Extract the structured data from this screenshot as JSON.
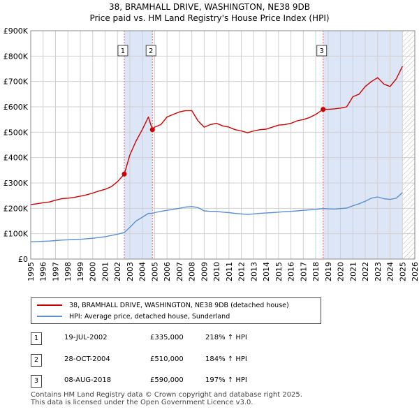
{
  "title": "38, BRAMHALL DRIVE, WASHINGTON, NE38 9DB",
  "subtitle": "Price paid vs. HM Land Registry's House Price Index (HPI)",
  "colors": {
    "property_line": "#cc0000",
    "hpi_line": "#5b8fd0",
    "shade": "#dde6f7",
    "vline": "#e06666"
  },
  "chart_data": {
    "type": "line",
    "title": "38, BRAMHALL DRIVE, WASHINGTON, NE38 9DB",
    "subtitle": "Price paid vs. HM Land Registry's House Price Index (HPI)",
    "xlim": [
      1995,
      2026
    ],
    "ylim": [
      0,
      900000
    ],
    "x_ticks": [
      "1995",
      "1996",
      "1997",
      "1998",
      "1999",
      "2000",
      "2001",
      "2002",
      "2003",
      "2004",
      "2005",
      "2006",
      "2007",
      "2008",
      "2009",
      "2010",
      "2011",
      "2012",
      "2013",
      "2014",
      "2015",
      "2016",
      "2017",
      "2018",
      "2019",
      "2020",
      "2021",
      "2022",
      "2023",
      "2024",
      "2025",
      "2026"
    ],
    "y_ticks": [
      {
        "value": 0,
        "label": "£0"
      },
      {
        "value": 100000,
        "label": "£100K"
      },
      {
        "value": 200000,
        "label": "£200K"
      },
      {
        "value": 300000,
        "label": "£300K"
      },
      {
        "value": 400000,
        "label": "£400K"
      },
      {
        "value": 500000,
        "label": "£500K"
      },
      {
        "value": 600000,
        "label": "£600K"
      },
      {
        "value": 700000,
        "label": "£700K"
      },
      {
        "value": 800000,
        "label": "£800K"
      },
      {
        "value": 900000,
        "label": "£900K"
      }
    ],
    "grid": true,
    "shaded_ranges": [
      [
        2002.55,
        2004.82
      ],
      [
        2018.6,
        2025.0
      ]
    ],
    "forecast_hatch_from": 2025.0,
    "series": [
      {
        "name": "38, BRAMHALL DRIVE, WASHINGTON, NE38 9DB (detached house)",
        "x": [
          1995,
          1995.5,
          1996,
          1996.5,
          1997,
          1997.5,
          1998,
          1998.5,
          1999,
          1999.5,
          2000,
          2000.5,
          2001,
          2001.5,
          2002,
          2002.55,
          2003,
          2003.5,
          2004,
          2004.5,
          2004.82,
          2005,
          2005.5,
          2006,
          2006.5,
          2007,
          2007.5,
          2008,
          2008.5,
          2009,
          2009.5,
          2010,
          2010.5,
          2011,
          2011.5,
          2012,
          2012.5,
          2013,
          2013.5,
          2014,
          2014.5,
          2015,
          2015.5,
          2016,
          2016.5,
          2017,
          2017.5,
          2018,
          2018.6,
          2019,
          2019.5,
          2020,
          2020.5,
          2021,
          2021.5,
          2022,
          2022.5,
          2023,
          2023.5,
          2024,
          2024.5,
          2025
        ],
        "values": [
          215000,
          218000,
          222000,
          225000,
          232000,
          238000,
          240000,
          243000,
          248000,
          253000,
          260000,
          268000,
          275000,
          285000,
          305000,
          335000,
          410000,
          465000,
          510000,
          560000,
          510000,
          520000,
          530000,
          560000,
          570000,
          580000,
          585000,
          585000,
          545000,
          520000,
          530000,
          535000,
          525000,
          520000,
          510000,
          505000,
          498000,
          505000,
          510000,
          512000,
          520000,
          528000,
          530000,
          535000,
          545000,
          550000,
          558000,
          570000,
          590000,
          590000,
          592000,
          595000,
          600000,
          640000,
          650000,
          680000,
          700000,
          715000,
          690000,
          680000,
          710000,
          760000
        ]
      },
      {
        "name": "HPI: Average price, detached house, Sunderland",
        "x": [
          1995,
          1995.5,
          1996,
          1996.5,
          1997,
          1997.5,
          1998,
          1998.5,
          1999,
          1999.5,
          2000,
          2000.5,
          2001,
          2001.5,
          2002,
          2002.55,
          2003,
          2003.5,
          2004,
          2004.5,
          2004.82,
          2005,
          2005.5,
          2006,
          2006.5,
          2007,
          2007.5,
          2008,
          2008.5,
          2009,
          2009.5,
          2010,
          2010.5,
          2011,
          2011.5,
          2012,
          2012.5,
          2013,
          2013.5,
          2014,
          2014.5,
          2015,
          2015.5,
          2016,
          2016.5,
          2017,
          2017.5,
          2018,
          2018.6,
          2019,
          2019.5,
          2020,
          2020.5,
          2021,
          2021.5,
          2022,
          2022.5,
          2023,
          2023.5,
          2024,
          2024.5,
          2025
        ],
        "values": [
          68000,
          69000,
          70000,
          71000,
          73000,
          75000,
          76000,
          77000,
          78000,
          80000,
          82000,
          85000,
          88000,
          93000,
          98000,
          105000,
          125000,
          150000,
          165000,
          180000,
          180000,
          183000,
          188000,
          192000,
          196000,
          200000,
          205000,
          207000,
          203000,
          190000,
          188000,
          188000,
          185000,
          183000,
          180000,
          178000,
          176000,
          178000,
          180000,
          182000,
          183000,
          185000,
          187000,
          188000,
          190000,
          192000,
          194000,
          196000,
          199000,
          198000,
          197000,
          199000,
          201000,
          210000,
          218000,
          228000,
          240000,
          245000,
          238000,
          235000,
          240000,
          262000
        ]
      }
    ],
    "markers": [
      {
        "label": "1",
        "x": 2002.55,
        "y": 335000
      },
      {
        "label": "2",
        "x": 2004.82,
        "y": 510000
      },
      {
        "label": "3",
        "x": 2018.6,
        "y": 590000
      }
    ]
  },
  "legend": {
    "property": "38, BRAMHALL DRIVE, WASHINGTON, NE38 9DB (detached house)",
    "hpi": "HPI: Average price, detached house, Sunderland"
  },
  "transactions": [
    {
      "num": "1",
      "date": "19-JUL-2002",
      "price": "£335,000",
      "hpi": "218% ↑ HPI"
    },
    {
      "num": "2",
      "date": "28-OCT-2004",
      "price": "£510,000",
      "hpi": "184% ↑ HPI"
    },
    {
      "num": "3",
      "date": "08-AUG-2018",
      "price": "£590,000",
      "hpi": "197% ↑ HPI"
    }
  ],
  "footer": {
    "line1": "Contains HM Land Registry data © Crown copyright and database right 2025.",
    "line2": "This data is licensed under the Open Government Licence v3.0."
  }
}
